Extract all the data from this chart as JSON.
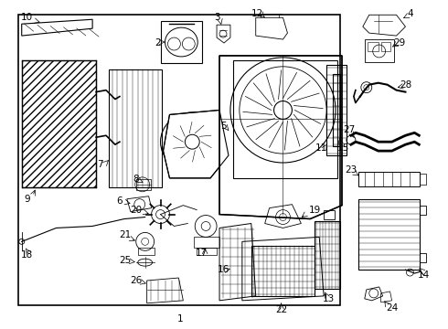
{
  "bg_color": "#ffffff",
  "line_color": "#000000",
  "label_color": "#000000",
  "fig_width": 4.9,
  "fig_height": 3.6,
  "dpi": 100
}
